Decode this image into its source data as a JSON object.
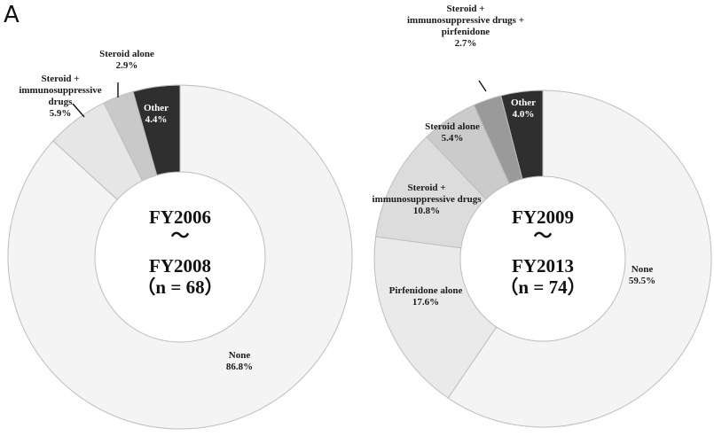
{
  "panel_label": "A",
  "chart_data": [
    {
      "type": "pie",
      "center_text": [
        "FY2006",
        "～",
        "FY2008",
        "（n = 68）"
      ],
      "slices": [
        {
          "label": [
            "None"
          ],
          "value": 86.8,
          "value_text": "86.8%",
          "color": "#f4f4f4"
        },
        {
          "label": [
            "Steroid +",
            "immunosuppressive",
            "drugs"
          ],
          "value": 5.9,
          "value_text": "5.9%",
          "color": "#e6e6e6"
        },
        {
          "label": [
            "Steroid alone"
          ],
          "value": 2.9,
          "value_text": "2.9%",
          "color": "#c9c9c9"
        },
        {
          "label": [
            "Other"
          ],
          "value": 4.4,
          "value_text": "4.4%",
          "color": "#2f2f2f"
        }
      ]
    },
    {
      "type": "pie",
      "center_text": [
        "FY2009",
        "～",
        "FY2013",
        "（n = 74）"
      ],
      "slices": [
        {
          "label": [
            "None"
          ],
          "value": 59.5,
          "value_text": "59.5%",
          "color": "#f4f4f4"
        },
        {
          "label": [
            "Pirfenidone alone"
          ],
          "value": 17.6,
          "value_text": "17.6%",
          "color": "#eaeaea"
        },
        {
          "label": [
            "Steroid +",
            "immunosuppressive drugs"
          ],
          "value": 10.8,
          "value_text": "10.8%",
          "color": "#dcdcdc"
        },
        {
          "label": [
            "Steroid alone"
          ],
          "value": 5.4,
          "value_text": "5.4%",
          "color": "#cbcbcb"
        },
        {
          "label": [
            "Steroid +",
            "immunosuppressive drugs +",
            "pirfenidone"
          ],
          "value": 2.7,
          "value_text": "2.7%",
          "color": "#9a9a9a"
        },
        {
          "label": [
            "Other"
          ],
          "value": 4.0,
          "value_text": "4.0%",
          "color": "#2f2f2f"
        }
      ]
    }
  ]
}
